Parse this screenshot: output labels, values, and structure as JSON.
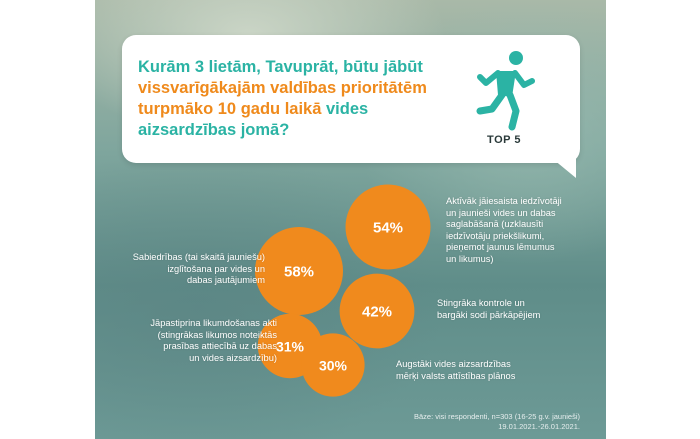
{
  "question": {
    "part1": "Kurām 3 lietām, Tavuprāt, būtu jābūt",
    "part2": "vissvarīgākajām valdības prioritātēm",
    "part3": "turpmāko 10 gadu laikā",
    "part4": "vides aizsardzības jomā?"
  },
  "badge": {
    "icon": "running-person-icon",
    "label": "TOP 5"
  },
  "colors": {
    "accent_teal": "#2bb3a4",
    "accent_orange": "#ef8a1c",
    "bubble_fill": "#f08a1d"
  },
  "chart_data": {
    "type": "bubble",
    "title": "",
    "categories": [
      "Aktīvāk jāiesaista iedzīvotāji un jaunieši vides un dabas saglabāšanā (uzklausīt iedzīvotāju priekšlikumi, pieņemot jaunus lēmumus un likumus)",
      "Sabiedrības (tai skaitā jauniešu) izglītošana par vides un dabas jautājumiem",
      "Stingrāka kontrole un bargāki sodi pārkāpējiem",
      "Jāpastiprina likumdošanas akti (stingrākas likumos noteiktās prasības attiecībā uz dabas un vides aizsardzību)",
      "Augstāki vides aizsardzības mērķi valsts attīstības plānos"
    ],
    "values": [
      54,
      58,
      42,
      31,
      30
    ],
    "value_labels": [
      "54%",
      "58%",
      "42%",
      "31%",
      "30%"
    ]
  },
  "labels": {
    "l54": [
      "Aktīvāk jāiesaista iedzīvotāji",
      "un jaunieši vides un dabas",
      "saglabāšanā (uzklausīti",
      "iedzīvotāju priekšlikumi,",
      "pieņemot jaunus lēmumus",
      "un likumus)"
    ],
    "l58": [
      "Sabiedrības (tai skaitā jauniešu)",
      "izglītošana par vides un",
      "dabas jautājumiem"
    ],
    "l42": [
      "Stingrāka kontrole un",
      "bargāki sodi pārkāpējiem"
    ],
    "l31": [
      "Jāpastiprina likumdošanas akti",
      "(stingrākas likumos noteiktās",
      "prasības attiecībā uz dabas",
      "un vides aizsardzību)"
    ],
    "l30": [
      "Augstāki vides aizsardzības",
      "mērķi valsts attīstības plānos"
    ]
  },
  "source": {
    "line1": "Bāze: visi respondenti, n=303 (16-25 g.v. jaunieši)",
    "line2": "19.01.2021.-26.01.2021."
  }
}
